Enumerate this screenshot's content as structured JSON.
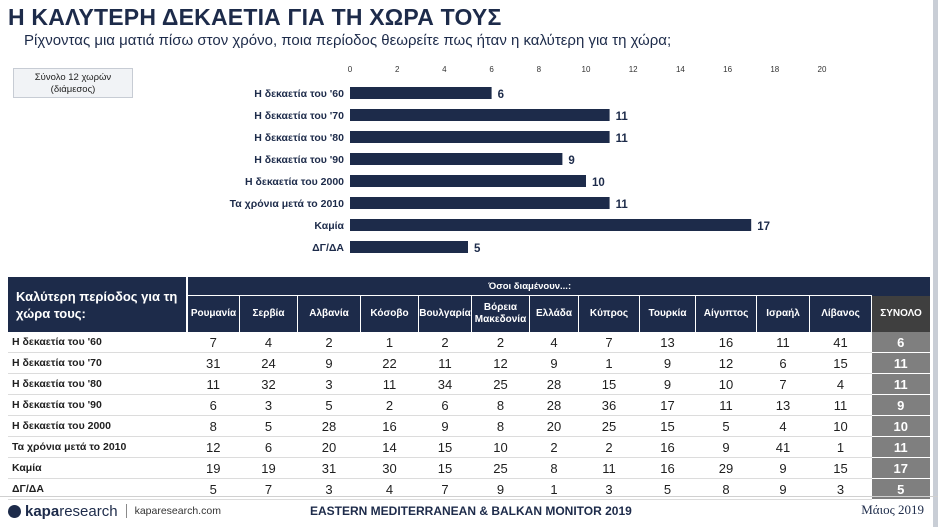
{
  "header": {
    "title": "Η ΚΑΛΥΤΕΡΗ ΔΕΚΑΕΤΙΑ ΓΙΑ ΤΗ ΧΩΡΑ ΤΟΥΣ",
    "subtitle": "Ρίχνοντας μια ματιά πίσω στον χρόνο, ποια περίοδος θεωρείτε πως ήταν η καλύτερη για τη χώρα;"
  },
  "sample_box": {
    "line1": "Σύνολο 12 χωρών",
    "line2": "(διάμεσος)"
  },
  "chart_data": {
    "type": "bar",
    "orientation": "horizontal",
    "categories": [
      "Η δεκαετία του '60",
      "Η δεκαετία του '70",
      "Η δεκαετία του '80",
      "Η δεκαετία του '90",
      "Η δεκαετία του 2000",
      "Τα χρόνια μετά το 2010",
      "Καμία",
      "ΔΓ/ΔΑ"
    ],
    "values": [
      6,
      11,
      11,
      9,
      10,
      11,
      17,
      5
    ],
    "xlim": [
      0,
      20
    ],
    "xticks": [
      0,
      2,
      4,
      6,
      8,
      10,
      12,
      14,
      16,
      18,
      20
    ],
    "grid": false,
    "bar_color": "#1d2b4a"
  },
  "table": {
    "corner_label": "Καλύτερη περίοδος για τη χώρα τους:",
    "group_header": "Όσοι διαμένουν...:",
    "columns": [
      "Ρουμανία",
      "Σερβία",
      "Αλβανία",
      "Κόσοβο",
      "Βουλγαρία",
      "Βόρεια Μακεδονία",
      "Ελλάδα",
      "Κύπρος",
      "Τουρκία",
      "Αίγυπτος",
      "Ισραήλ",
      "Λίβανος",
      "ΣΥΝΟΛΟ"
    ],
    "rows": [
      {
        "label": "Η δεκαετία του '60",
        "values": [
          "7",
          "4",
          "2",
          "1",
          "2",
          "2",
          "4",
          "7",
          "13",
          "16",
          "11",
          "41",
          "6"
        ]
      },
      {
        "label": "Η δεκαετία του '70",
        "values": [
          "31",
          "24",
          "9",
          "22",
          "11",
          "12",
          "9",
          "1",
          "9",
          "12",
          "6",
          "15",
          "11"
        ]
      },
      {
        "label": "Η δεκαετία του '80",
        "values": [
          "11",
          "32",
          "3",
          "11",
          "34",
          "25",
          "28",
          "15",
          "9",
          "10",
          "7",
          "4",
          "11"
        ]
      },
      {
        "label": "Η δεκαετία του '90",
        "values": [
          "6",
          "3",
          "5",
          "2",
          "6",
          "8",
          "28",
          "36",
          "17",
          "11",
          "13",
          "11",
          "9"
        ]
      },
      {
        "label": "Η δεκαετία του 2000",
        "values": [
          "8",
          "5",
          "28",
          "16",
          "9",
          "8",
          "20",
          "25",
          "15",
          "5",
          "4",
          "10",
          "10"
        ]
      },
      {
        "label": "Τα χρόνια μετά το 2010",
        "values": [
          "12",
          "6",
          "20",
          "14",
          "15",
          "10",
          "2",
          "2",
          "16",
          "9",
          "41",
          "1",
          "11"
        ]
      },
      {
        "label": "Καμία",
        "values": [
          "19",
          "19",
          "31",
          "30",
          "15",
          "25",
          "8",
          "11",
          "16",
          "29",
          "9",
          "15",
          "17"
        ]
      },
      {
        "label": "ΔΓ/ΔΑ",
        "values": [
          "5",
          "7",
          "3",
          "4",
          "7",
          "9",
          "1",
          "3",
          "5",
          "8",
          "9",
          "3",
          "5"
        ]
      }
    ]
  },
  "footer": {
    "logo_bold": "kapa",
    "logo_light": "research",
    "url": "kaparesearch.com",
    "center": "EASTERN MEDITERRANEAN & BALKAN MONITOR 2019",
    "date": "Μάιος 2019"
  }
}
